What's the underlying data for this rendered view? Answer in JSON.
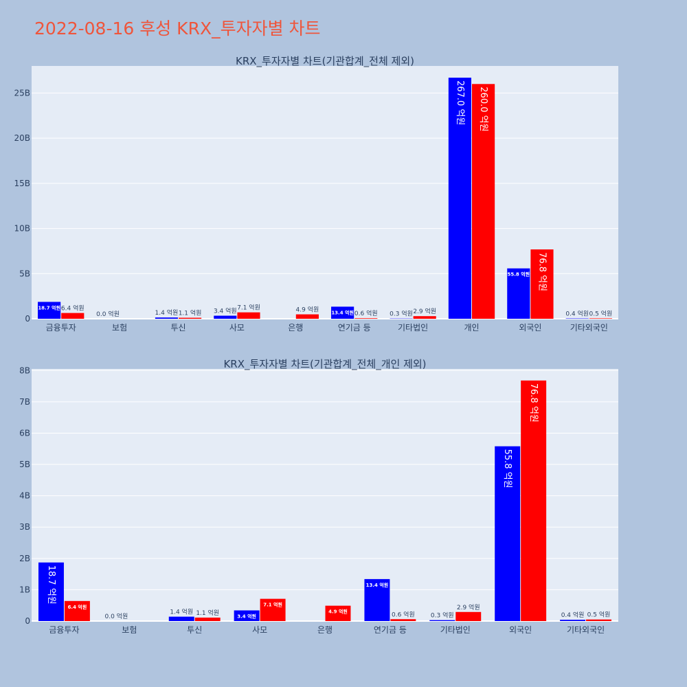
{
  "page": {
    "title": "2022-08-16 후성 KRX_투자자별 차트"
  },
  "colors": {
    "buy": "#0000ff",
    "sell": "#ff0000",
    "plot_bg": "#e5ecf6",
    "background": "#b0c4de",
    "title": "#ef553b"
  },
  "chart_data": [
    {
      "type": "bar",
      "title": "KRX_투자자별 차트(기관합계_전체 제외)",
      "categories": [
        "금융투자",
        "보험",
        "투신",
        "사모",
        "은행",
        "연기금 등",
        "기타법인",
        "개인",
        "외국인",
        "기타외국인"
      ],
      "series": [
        {
          "values": [
            1870000000,
            0,
            140000000,
            340000000,
            0,
            1340000000,
            30000000,
            26700000000,
            5580000000,
            40000000
          ],
          "labels": [
            "18.7 억원",
            "0.0 억원",
            "1.4 억원",
            "3.4 억원",
            "",
            "13.4 억원",
            "0.3 억원",
            "267.0 억원",
            "55.8 억원",
            "0.4 억원"
          ]
        },
        {
          "values": [
            640000000,
            0,
            110000000,
            710000000,
            490000000,
            60000000,
            290000000,
            26000000000,
            7680000000,
            50000000
          ],
          "labels": [
            "6.4 억원",
            "",
            "1.1 억원",
            "7.1 억원",
            "4.9 억원",
            "0.6 억원",
            "2.9 억원",
            "260.0 억원",
            "76.8 억원",
            "0.5 억원"
          ]
        }
      ],
      "ylim": [
        0,
        28000000000
      ],
      "yticks": [
        0,
        5000000000,
        10000000000,
        15000000000,
        20000000000,
        25000000000
      ],
      "ytick_labels": [
        "0",
        "5B",
        "10B",
        "15B",
        "20B",
        "25B"
      ],
      "grid": true
    },
    {
      "type": "bar",
      "title": "KRX_투자자별 차트(기관합계_전체_개인 제외)",
      "categories": [
        "금융투자",
        "보험",
        "투신",
        "사모",
        "은행",
        "연기금 등",
        "기타법인",
        "외국인",
        "기타외국인"
      ],
      "series": [
        {
          "values": [
            1870000000,
            0,
            140000000,
            340000000,
            0,
            1340000000,
            30000000,
            5580000000,
            40000000
          ],
          "labels": [
            "18.7 억원",
            "0.0 억원",
            "1.4 억원",
            "3.4 억원",
            "",
            "13.4 억원",
            "0.3 억원",
            "55.8 억원",
            "0.4 억원"
          ]
        },
        {
          "values": [
            640000000,
            0,
            110000000,
            710000000,
            490000000,
            60000000,
            290000000,
            7680000000,
            50000000
          ],
          "labels": [
            "6.4 억원",
            "",
            "1.1 억원",
            "7.1 억원",
            "4.9 억원",
            "0.6 억원",
            "2.9 억원",
            "76.8 억원",
            "0.5 억원"
          ]
        }
      ],
      "ylim": [
        0,
        8050000000
      ],
      "yticks": [
        0,
        1000000000,
        2000000000,
        3000000000,
        4000000000,
        5000000000,
        6000000000,
        7000000000,
        8000000000
      ],
      "ytick_labels": [
        "0",
        "1B",
        "2B",
        "3B",
        "4B",
        "5B",
        "6B",
        "7B",
        "8B"
      ],
      "grid": true
    }
  ]
}
